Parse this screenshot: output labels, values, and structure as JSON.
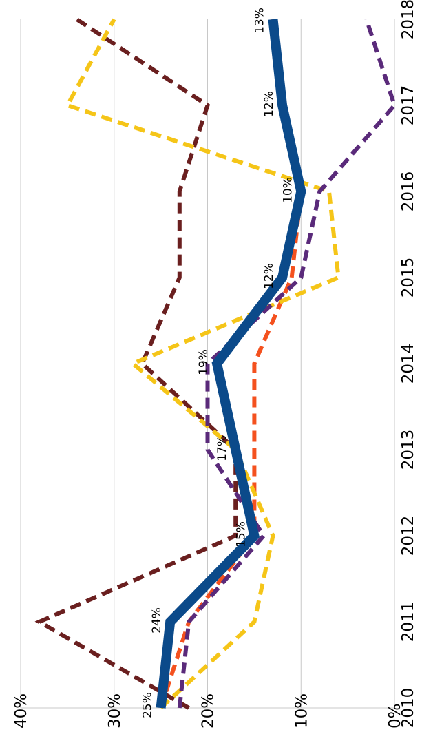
{
  "chart_data": {
    "type": "line",
    "orientation": "rotated-90-clockwise",
    "x": [
      "2010",
      "2011",
      "2012",
      "2013",
      "2014",
      "2015",
      "2016",
      "2017",
      "2018"
    ],
    "ylim": [
      0,
      40
    ],
    "y_ticks": [
      "0%",
      "10%",
      "20%",
      "30%",
      "40%"
    ],
    "grid": true,
    "series": [
      {
        "style": "solid-thick",
        "color": "#0b4a8a",
        "values": [
          25,
          24,
          15,
          17,
          19,
          12,
          10,
          12,
          13
        ]
      },
      {
        "style": "dashed",
        "color": "#f4511e",
        "values": [
          25,
          22,
          15,
          15,
          15,
          11,
          10,
          12,
          13
        ]
      },
      {
        "style": "dashed",
        "color": "#6a1f1f",
        "values": [
          22,
          38,
          17,
          17,
          27,
          23,
          23,
          20,
          34
        ]
      },
      {
        "style": "dashed",
        "color": "#f5c518",
        "values": [
          25,
          15,
          13,
          17,
          28,
          6,
          7,
          35,
          30
        ]
      },
      {
        "style": "dashed",
        "color": "#5a2a7a",
        "values": [
          23,
          22,
          14,
          20,
          20,
          10,
          8,
          0,
          3
        ]
      }
    ],
    "data_labels": [
      "25%",
      "24%",
      "15%",
      "17%",
      "19%",
      "12%",
      "10%",
      "12%",
      "13%"
    ]
  }
}
